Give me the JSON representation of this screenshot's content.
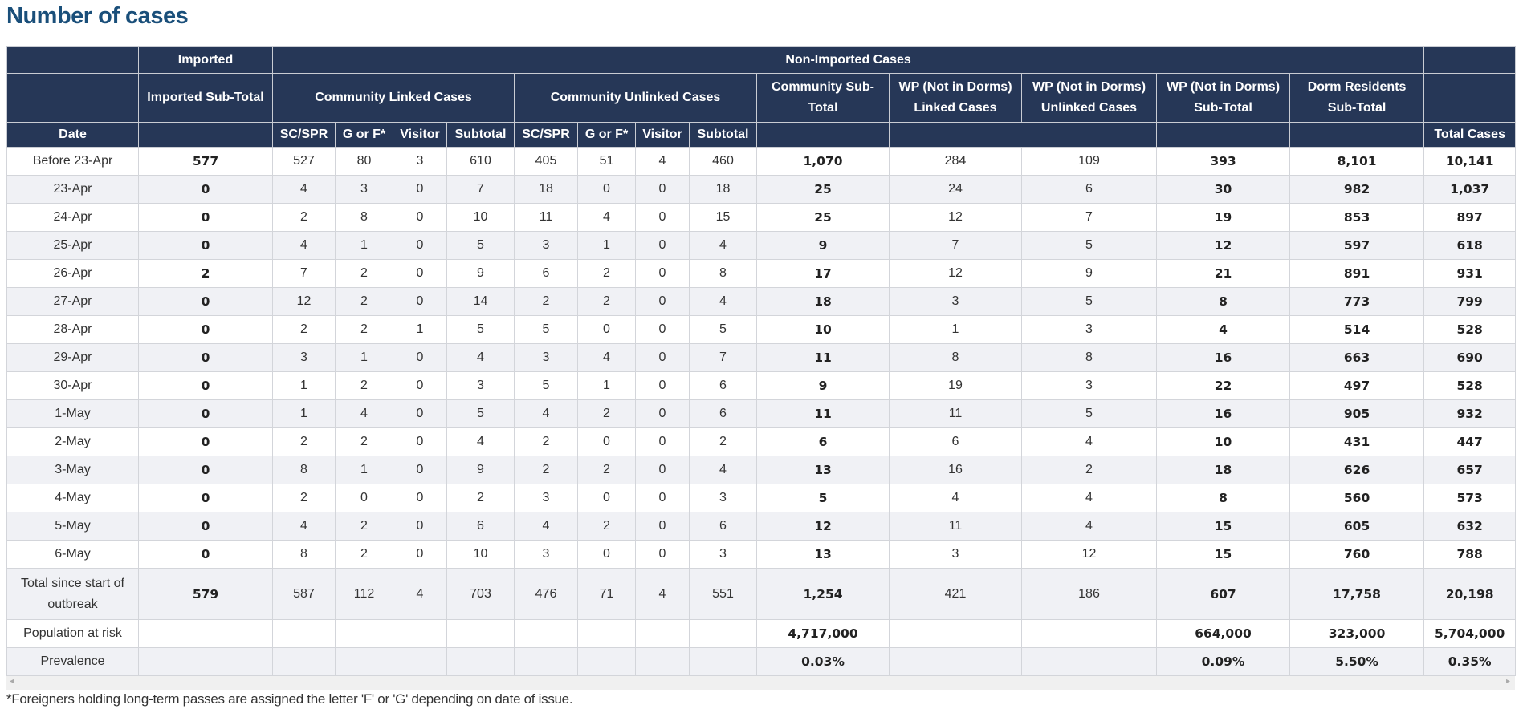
{
  "title": "Number of cases",
  "header": {
    "imported": "Imported",
    "non_imported": "Non-Imported Cases",
    "imported_subtotal": "Imported Sub-Total",
    "community_linked": "Community Linked Cases",
    "community_unlinked": "Community Unlinked Cases",
    "community_subtotal": "Community Sub-Total",
    "wp_linked": "WP (Not in Dorms) Linked Cases",
    "wp_unlinked": "WP (Not in Dorms) Unlinked Cases",
    "wp_subtotal": "WP (Not in Dorms) Sub-Total",
    "dorm_subtotal": "Dorm Residents Sub-Total",
    "date": "Date",
    "sub": [
      "SC/SPR",
      "G or F*",
      "Visitor",
      "Subtotal",
      "SC/SPR",
      "G or F*",
      "Visitor",
      "Subtotal"
    ],
    "total_cases": "Total Cases"
  },
  "rows": [
    [
      "Before 23-Apr",
      "577",
      "527",
      "80",
      "3",
      "610",
      "405",
      "51",
      "4",
      "460",
      "1,070",
      "284",
      "109",
      "393",
      "8,101",
      "10,141"
    ],
    [
      "23-Apr",
      "0",
      "4",
      "3",
      "0",
      "7",
      "18",
      "0",
      "0",
      "18",
      "25",
      "24",
      "6",
      "30",
      "982",
      "1,037"
    ],
    [
      "24-Apr",
      "0",
      "2",
      "8",
      "0",
      "10",
      "11",
      "4",
      "0",
      "15",
      "25",
      "12",
      "7",
      "19",
      "853",
      "897"
    ],
    [
      "25-Apr",
      "0",
      "4",
      "1",
      "0",
      "5",
      "3",
      "1",
      "0",
      "4",
      "9",
      "7",
      "5",
      "12",
      "597",
      "618"
    ],
    [
      "26-Apr",
      "2",
      "7",
      "2",
      "0",
      "9",
      "6",
      "2",
      "0",
      "8",
      "17",
      "12",
      "9",
      "21",
      "891",
      "931"
    ],
    [
      "27-Apr",
      "0",
      "12",
      "2",
      "0",
      "14",
      "2",
      "2",
      "0",
      "4",
      "18",
      "3",
      "5",
      "8",
      "773",
      "799"
    ],
    [
      "28-Apr",
      "0",
      "2",
      "2",
      "1",
      "5",
      "5",
      "0",
      "0",
      "5",
      "10",
      "1",
      "3",
      "4",
      "514",
      "528"
    ],
    [
      "29-Apr",
      "0",
      "3",
      "1",
      "0",
      "4",
      "3",
      "4",
      "0",
      "7",
      "11",
      "8",
      "8",
      "16",
      "663",
      "690"
    ],
    [
      "30-Apr",
      "0",
      "1",
      "2",
      "0",
      "3",
      "5",
      "1",
      "0",
      "6",
      "9",
      "19",
      "3",
      "22",
      "497",
      "528"
    ],
    [
      "1-May",
      "0",
      "1",
      "4",
      "0",
      "5",
      "4",
      "2",
      "0",
      "6",
      "11",
      "11",
      "5",
      "16",
      "905",
      "932"
    ],
    [
      "2-May",
      "0",
      "2",
      "2",
      "0",
      "4",
      "2",
      "0",
      "0",
      "2",
      "6",
      "6",
      "4",
      "10",
      "431",
      "447"
    ],
    [
      "3-May",
      "0",
      "8",
      "1",
      "0",
      "9",
      "2",
      "2",
      "0",
      "4",
      "13",
      "16",
      "2",
      "18",
      "626",
      "657"
    ],
    [
      "4-May",
      "0",
      "2",
      "0",
      "0",
      "2",
      "3",
      "0",
      "0",
      "3",
      "5",
      "4",
      "4",
      "8",
      "560",
      "573"
    ],
    [
      "5-May",
      "0",
      "4",
      "2",
      "0",
      "6",
      "4",
      "2",
      "0",
      "6",
      "12",
      "11",
      "4",
      "15",
      "605",
      "632"
    ],
    [
      "6-May",
      "0",
      "8",
      "2",
      "0",
      "10",
      "3",
      "0",
      "0",
      "3",
      "13",
      "3",
      "12",
      "15",
      "760",
      "788"
    ],
    [
      "Total since start of outbreak",
      "579",
      "587",
      "112",
      "4",
      "703",
      "476",
      "71",
      "4",
      "551",
      "1,254",
      "421",
      "186",
      "607",
      "17,758",
      "20,198"
    ],
    [
      "Population at risk",
      "",
      "",
      "",
      "",
      "",
      "",
      "",
      "",
      "",
      "4,717,000",
      "",
      "",
      "664,000",
      "323,000",
      "5,704,000"
    ],
    [
      "Prevalence",
      "",
      "",
      "",
      "",
      "",
      "",
      "",
      "",
      "",
      "0.03%",
      "",
      "",
      "0.09%",
      "5.50%",
      "0.35%"
    ]
  ],
  "footnote": "*Foreigners holding long-term passes are assigned the letter 'F' or 'G' depending on date of issue."
}
